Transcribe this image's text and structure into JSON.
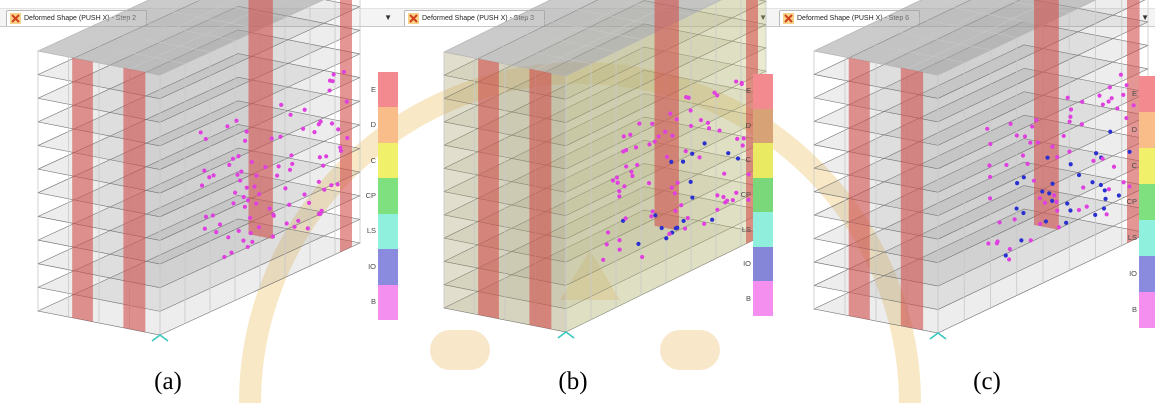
{
  "panels": [
    {
      "tab_title": "Deformed Shape (PUSH X) - Step 2",
      "caption": "(a)",
      "legend": [
        {
          "label": "E",
          "color": "#f28a8f"
        },
        {
          "label": "D",
          "color": "#f8bd89"
        },
        {
          "label": "C",
          "color": "#f0f06a"
        },
        {
          "label": "CP",
          "color": "#7fe07f"
        },
        {
          "label": "LS",
          "color": "#8ff0dd"
        },
        {
          "label": "IO",
          "color": "#8a8adf"
        },
        {
          "label": "B",
          "color": "#f48ff0"
        }
      ]
    },
    {
      "tab_title": "Deformed Shape (PUSH X) - Step 3",
      "caption": "(b)",
      "legend": [
        {
          "label": "E",
          "color": "#f28a8f"
        },
        {
          "label": "D",
          "color": "#d8a277"
        },
        {
          "label": "C",
          "color": "#eaea62"
        },
        {
          "label": "CP",
          "color": "#7ad87a"
        },
        {
          "label": "LS",
          "color": "#8fefdc"
        },
        {
          "label": "IO",
          "color": "#8686d8"
        },
        {
          "label": "B",
          "color": "#f48ff0"
        }
      ]
    },
    {
      "tab_title": "Deformed Shape (PUSH X) - Step 6",
      "caption": "(c)",
      "legend": [
        {
          "label": "E",
          "color": "#f28a8f"
        },
        {
          "label": "D",
          "color": "#f8bd89"
        },
        {
          "label": "C",
          "color": "#f0f06a"
        },
        {
          "label": "CP",
          "color": "#7fe07f"
        },
        {
          "label": "LS",
          "color": "#8ff0dd"
        },
        {
          "label": "IO",
          "color": "#8a8adf"
        },
        {
          "label": "B",
          "color": "#f48ff0"
        }
      ]
    }
  ],
  "colors": {
    "frame": "#c8c8c8",
    "slab": "#8e8e8e",
    "shear_wall": "#d2504c",
    "hinge_b": "#e040e0",
    "hinge_io": "#2a30d0",
    "ground_support": "#38c8c0"
  },
  "icons": {
    "tab": "etabs-window-icon",
    "dropdown": "chevron-down-icon"
  }
}
